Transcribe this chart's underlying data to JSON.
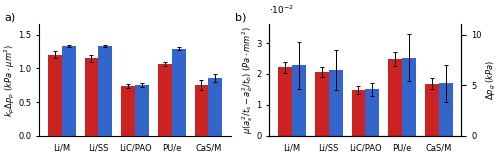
{
  "categories": [
    "Li/M",
    "Li/SS",
    "LiC/PAO",
    "PU/e",
    "CaS/M"
  ],
  "panel_a": {
    "red_vals": [
      1.2,
      1.15,
      0.74,
      1.07,
      0.75
    ],
    "blue_vals": [
      1.33,
      1.33,
      0.75,
      1.29,
      0.86
    ],
    "red_err": [
      0.05,
      0.05,
      0.03,
      0.03,
      0.07
    ],
    "blue_err": [
      0.02,
      0.02,
      0.03,
      0.02,
      0.06
    ],
    "ylabel": "$k_p\\Delta p_p$ ($kPa\\cdot\\mu m^2$)",
    "ylim": [
      0,
      1.65
    ],
    "yticks": [
      0,
      0.5,
      1.0,
      1.5
    ],
    "label": "a)"
  },
  "panel_b": {
    "red_vals": [
      2.22,
      2.07,
      1.48,
      2.48,
      1.68
    ],
    "blue_vals": [
      2.28,
      2.12,
      1.5,
      2.53,
      1.7
    ],
    "red_err": [
      0.18,
      0.17,
      0.14,
      0.22,
      0.18
    ],
    "blue_err": [
      0.75,
      0.65,
      0.22,
      0.75,
      0.6
    ],
    "ylabel_left": "$\\mu(a_s^2/t_s - a_b^2/t_b)$ ($Pa\\cdot mm^2$)",
    "ylabel_right": "$\\Delta p_g$ ($kPa$)",
    "ylim": [
      0,
      3.6
    ],
    "yticks": [
      0,
      1,
      2,
      3
    ],
    "scale_label": "$\\cdot10^{-2}$",
    "right_ylim": [
      0,
      11.0
    ],
    "right_yticks": [
      0,
      5,
      10
    ],
    "label": "b)"
  },
  "red_color": "#cc2222",
  "blue_color": "#3366cc",
  "bar_width": 0.38,
  "figsize": [
    5.0,
    1.55
  ],
  "dpi": 100
}
